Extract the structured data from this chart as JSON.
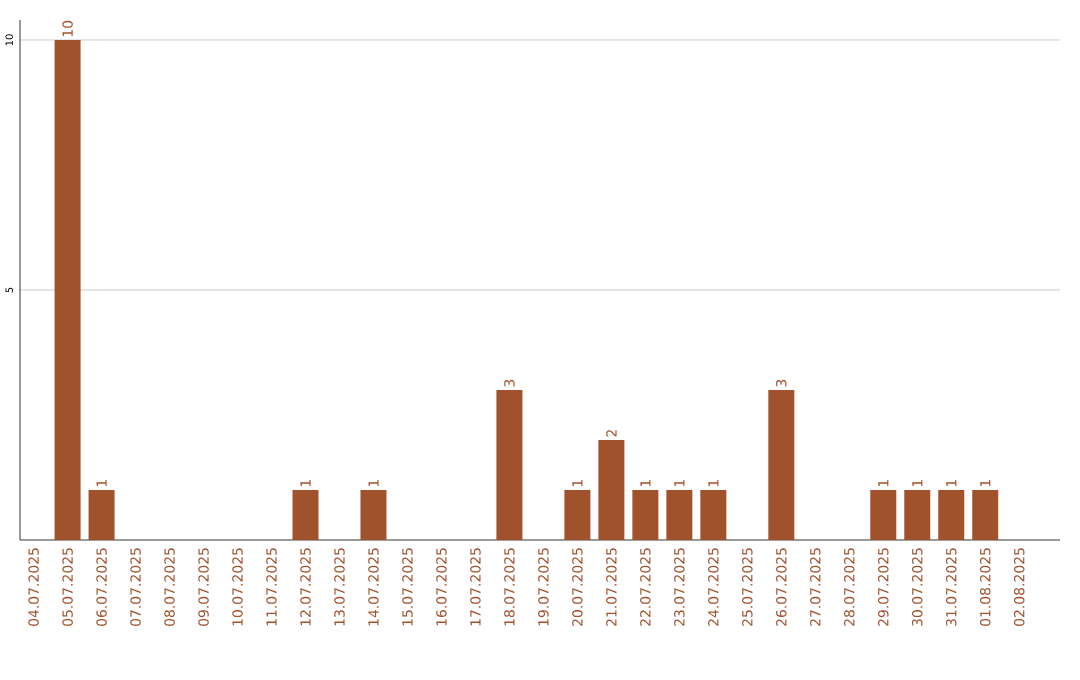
{
  "chart_data": {
    "type": "bar",
    "categories": [
      "04.07.2025",
      "05.07.2025",
      "06.07.2025",
      "07.07.2025",
      "08.07.2025",
      "09.07.2025",
      "10.07.2025",
      "11.07.2025",
      "12.07.2025",
      "13.07.2025",
      "14.07.2025",
      "15.07.2025",
      "16.07.2025",
      "17.07.2025",
      "18.07.2025",
      "19.07.2025",
      "20.07.2025",
      "21.07.2025",
      "22.07.2025",
      "23.07.2025",
      "24.07.2025",
      "25.07.2025",
      "26.07.2025",
      "27.07.2025",
      "28.07.2025",
      "29.07.2025",
      "30.07.2025",
      "31.07.2025",
      "01.08.2025",
      "02.08.2025"
    ],
    "values": [
      0,
      10,
      1,
      0,
      0,
      0,
      0,
      0,
      1,
      0,
      1,
      0,
      0,
      0,
      3,
      0,
      1,
      2,
      1,
      1,
      1,
      0,
      3,
      0,
      0,
      1,
      1,
      1,
      1,
      0
    ],
    "value_labels": [
      null,
      "10",
      "1",
      null,
      null,
      null,
      null,
      null,
      "1",
      null,
      "1",
      null,
      null,
      null,
      "3",
      null,
      "1",
      "2",
      "1",
      "1",
      "1",
      null,
      "3",
      null,
      null,
      "1",
      "1",
      "1",
      "1",
      null
    ],
    "color": "#a0522d",
    "ylim": [
      0,
      10.4
    ],
    "yticks": [
      5,
      10
    ],
    "grid": "y"
  }
}
